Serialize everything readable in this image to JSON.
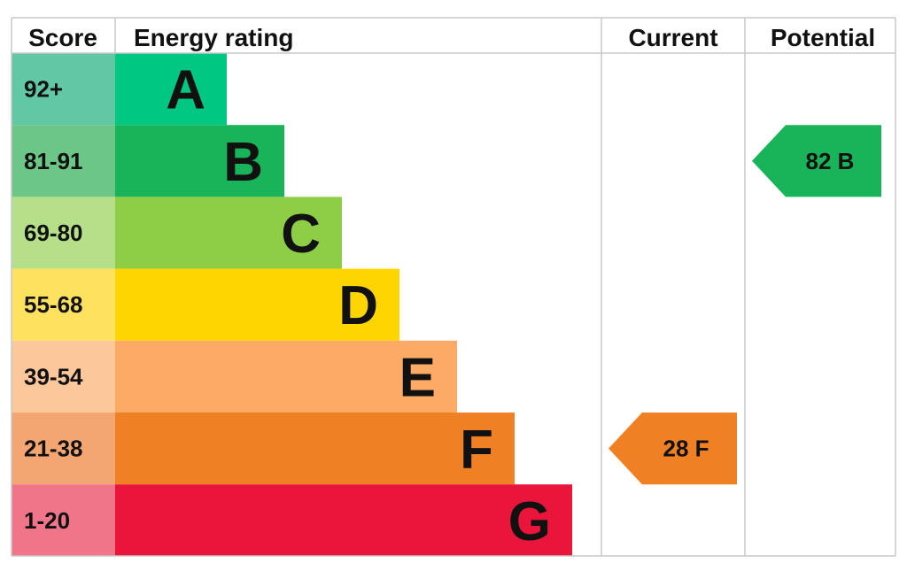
{
  "chart_data": {
    "type": "bar",
    "headers": {
      "score": "Score",
      "energy_rating": "Energy rating",
      "current": "Current",
      "potential": "Potential"
    },
    "bands": [
      {
        "letter": "A",
        "score": "92+",
        "color": "#00c781",
        "score_color": "#62c7a4"
      },
      {
        "letter": "B",
        "score": "81-91",
        "color": "#19b459",
        "score_color": "#6bc687"
      },
      {
        "letter": "C",
        "score": "69-80",
        "color": "#8dce46",
        "score_color": "#b5df89"
      },
      {
        "letter": "D",
        "score": "55-68",
        "color": "#ffd500",
        "score_color": "#ffe160"
      },
      {
        "letter": "E",
        "score": "39-54",
        "color": "#fcaa65",
        "score_color": "#fdc79c"
      },
      {
        "letter": "F",
        "score": "21-38",
        "color": "#ef8023",
        "score_color": "#f3a671"
      },
      {
        "letter": "G",
        "score": "1-20",
        "color": "#e9153b",
        "score_color": "#f07588"
      }
    ],
    "current": {
      "value": 28,
      "letter": "F",
      "label": "28  F",
      "color": "#ef8023"
    },
    "potential": {
      "value": 82,
      "letter": "B",
      "label": "82  B",
      "color": "#19b459"
    }
  }
}
